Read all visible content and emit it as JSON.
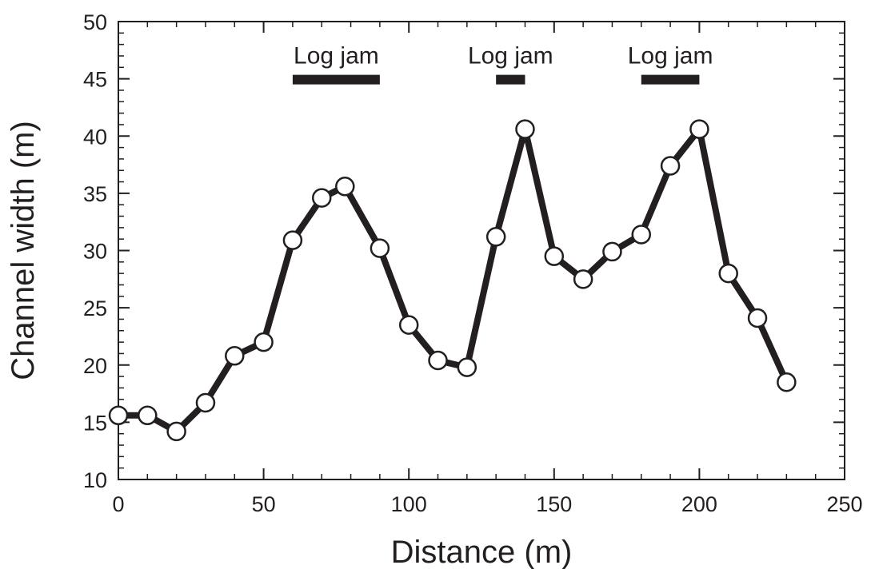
{
  "chart_data": {
    "type": "line",
    "title": "",
    "xlabel": "Distance (m)",
    "ylabel": "Channel width (m)",
    "xlim": [
      0,
      250
    ],
    "ylim": [
      10,
      50
    ],
    "xticks": [
      0,
      50,
      100,
      150,
      200,
      250
    ],
    "yticks": [
      10,
      15,
      20,
      25,
      30,
      35,
      40,
      45,
      50
    ],
    "grid": false,
    "series": [
      {
        "x": [
          0,
          10,
          20,
          30,
          40,
          50,
          60,
          70,
          78,
          90,
          100,
          110,
          120,
          130,
          140,
          150,
          160,
          170,
          180,
          190,
          200,
          210,
          220,
          230
        ],
        "y": [
          15.6,
          15.6,
          14.2,
          16.7,
          20.8,
          22.0,
          30.9,
          34.6,
          35.6,
          30.2,
          23.5,
          20.4,
          19.8,
          31.2,
          40.6,
          29.5,
          27.5,
          29.9,
          31.4,
          37.4,
          40.6,
          28.0,
          24.1,
          18.5
        ]
      }
    ],
    "annotations": [
      {
        "text": "Log jam",
        "x_start": 60,
        "x_end": 90,
        "y": 45
      },
      {
        "text": "Log jam",
        "x_start": 130,
        "x_end": 140,
        "y": 45
      },
      {
        "text": "Log jam",
        "x_start": 180,
        "x_end": 200,
        "y": 45
      }
    ],
    "colors": {
      "line": "#231f20",
      "marker_fill": "#ffffff",
      "axis": "#231f20"
    }
  }
}
